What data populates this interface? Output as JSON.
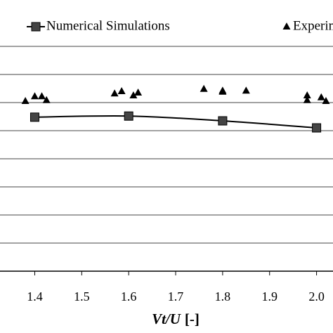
{
  "chart_data": {
    "type": "scatter",
    "x_label": "Vt/U",
    "x_label_unit": "[-]",
    "xlim": [
      1.326,
      2.035
    ],
    "xticks": [
      1.4,
      1.5,
      1.6,
      1.7,
      1.8,
      1.9,
      {
        "value": 2.0,
        "label": "2.0"
      }
    ],
    "ylim": [
      0,
      8
    ],
    "yticks": [
      0,
      1,
      2,
      3,
      4,
      5,
      6,
      7,
      8
    ],
    "grid": true,
    "legend": "top",
    "series": [
      {
        "name": "Numerical Simulations",
        "color": "#000000",
        "marker": "square",
        "line": true,
        "x": [
          1.4,
          1.6,
          1.8,
          2.0
        ],
        "values": [
          5.48,
          5.52,
          5.35,
          5.1
        ]
      },
      {
        "name": "Experiments",
        "color": "#000000",
        "marker": "triangle",
        "line": false,
        "x": [
          1.38,
          1.4,
          1.415,
          1.425,
          1.57,
          1.585,
          1.61,
          1.62,
          1.76,
          1.8,
          1.8,
          1.85,
          1.98,
          1.98,
          2.01,
          2.02
        ],
        "values": [
          6.05,
          6.22,
          6.22,
          6.08,
          6.32,
          6.4,
          6.25,
          6.35,
          6.48,
          6.42,
          6.38,
          6.42,
          6.25,
          6.08,
          6.18,
          6.05
        ]
      }
    ]
  }
}
